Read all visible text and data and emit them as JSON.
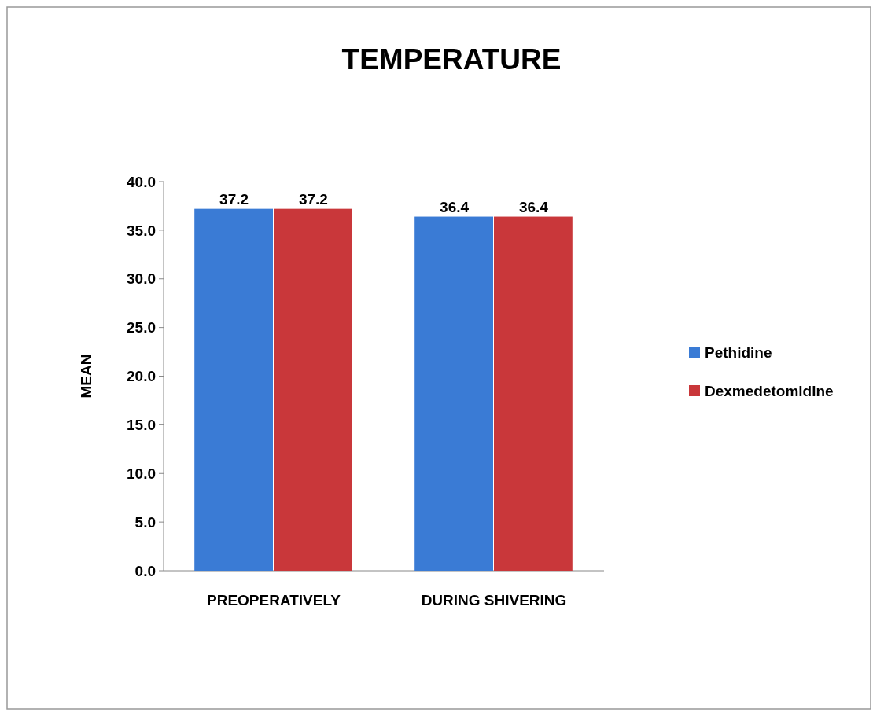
{
  "chart_data": {
    "type": "bar",
    "title": "TEMPERATURE",
    "ylabel": "MEAN",
    "categories": [
      "PREOPERATIVELY",
      "DURING SHIVERING"
    ],
    "series": [
      {
        "name": "Pethidine",
        "color": "#3a7bd5",
        "values": [
          37.2,
          36.4
        ]
      },
      {
        "name": "Dexmedetomidine",
        "color": "#c9373a",
        "values": [
          37.2,
          36.4
        ]
      }
    ],
    "ylim": [
      0,
      40
    ],
    "yticks": [
      {
        "value": 0,
        "label": "0.0"
      },
      {
        "value": 5,
        "label": "5.0"
      },
      {
        "value": 10,
        "label": "10.0"
      },
      {
        "value": 15,
        "label": "15.0"
      },
      {
        "value": 20,
        "label": "20.0"
      },
      {
        "value": 25,
        "label": "25.0"
      },
      {
        "value": 30,
        "label": "30.0"
      },
      {
        "value": 35,
        "label": "35.0"
      },
      {
        "value": 40,
        "label": "40.0"
      }
    ],
    "data_labels": true,
    "legend": "right",
    "grid": false
  }
}
